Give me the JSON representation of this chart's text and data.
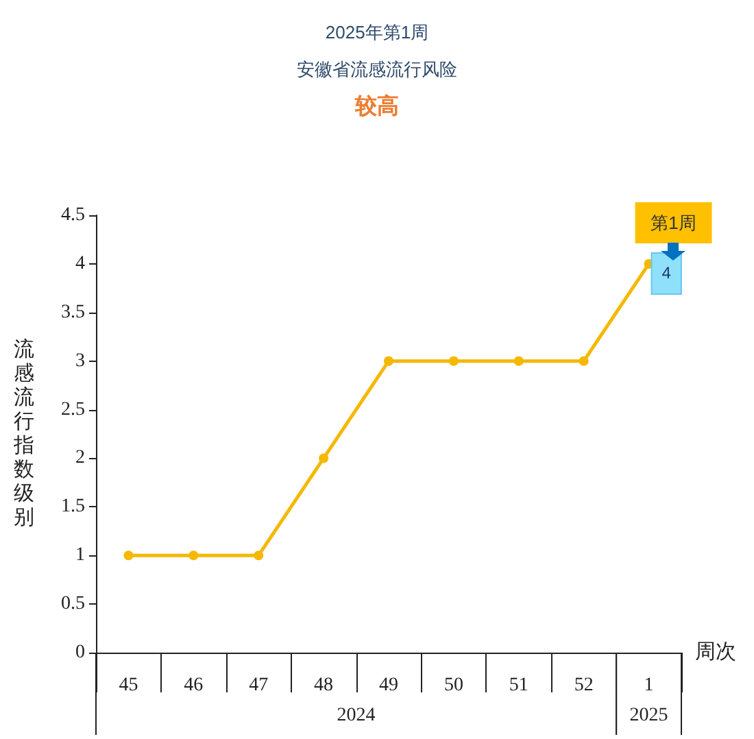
{
  "chart_data": {
    "type": "line",
    "title": "2025年第1周",
    "subtitle": "安徽省流感流行风险",
    "xlabel": "周次",
    "ylabel": "流感流行指数级别",
    "categories": [
      "45",
      "46",
      "47",
      "48",
      "49",
      "50",
      "51",
      "52",
      "1"
    ],
    "series": [
      {
        "color": "#f5b800",
        "values": [
          1,
          1,
          1,
          2,
          3,
          3,
          3,
          3,
          4
        ],
        "value_labels": [
          null,
          null,
          null,
          null,
          null,
          null,
          null,
          null,
          "4"
        ]
      }
    ],
    "ylim": [
      0,
      4.5
    ],
    "yticks": [
      0,
      0.5,
      1,
      1.5,
      2,
      2.5,
      3,
      3.5,
      4,
      4.5
    ],
    "grid": false,
    "marker": "circle",
    "line_style": "solid",
    "annotations": [
      "较高",
      "2024",
      "2025",
      {
        "text": "第1周",
        "x": "1",
        "y": 4
      }
    ]
  }
}
